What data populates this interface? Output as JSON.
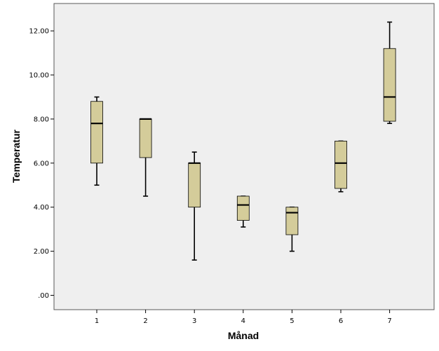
{
  "chart_data": {
    "type": "boxplot",
    "xlabel": "Månad",
    "ylabel": "Temperatur",
    "categories": [
      "1",
      "2",
      "3",
      "4",
      "5",
      "6",
      "7"
    ],
    "ylim": [
      -0.7,
      13.7
    ],
    "yticks": [
      0,
      2,
      4,
      6,
      8,
      10,
      12
    ],
    "ytick_labels": [
      ".00",
      "2.00",
      "4.00",
      "6.00",
      "8.00",
      "10.00",
      "12.00"
    ],
    "grid": false,
    "boxes": [
      {
        "category": "1",
        "whisker_low": 5.0,
        "q1": 6.0,
        "median": 7.8,
        "q3": 8.8,
        "whisker_high": 9.0
      },
      {
        "category": "2",
        "whisker_low": 4.5,
        "q1": 6.25,
        "median": 8.0,
        "q3": 8.0,
        "whisker_high": 8.0
      },
      {
        "category": "3",
        "whisker_low": 1.6,
        "q1": 4.0,
        "median": 6.0,
        "q3": 6.0,
        "whisker_high": 6.5
      },
      {
        "category": "4",
        "whisker_low": 3.1,
        "q1": 3.4,
        "median": 4.1,
        "q3": 4.5,
        "whisker_high": 4.5
      },
      {
        "category": "5",
        "whisker_low": 2.0,
        "q1": 2.75,
        "median": 3.75,
        "q3": 4.0,
        "whisker_high": 4.0
      },
      {
        "category": "6",
        "whisker_low": 4.7,
        "q1": 4.85,
        "median": 6.0,
        "q3": 7.0,
        "whisker_high": 7.0
      },
      {
        "category": "7",
        "whisker_low": 7.8,
        "q1": 7.9,
        "median": 9.0,
        "q3": 11.2,
        "whisker_high": 12.4
      }
    ],
    "colors": {
      "box_fill": "#d4cc9a",
      "plot_background": "#efefef",
      "frame": "#5a5a5a",
      "line": "#000000"
    }
  }
}
